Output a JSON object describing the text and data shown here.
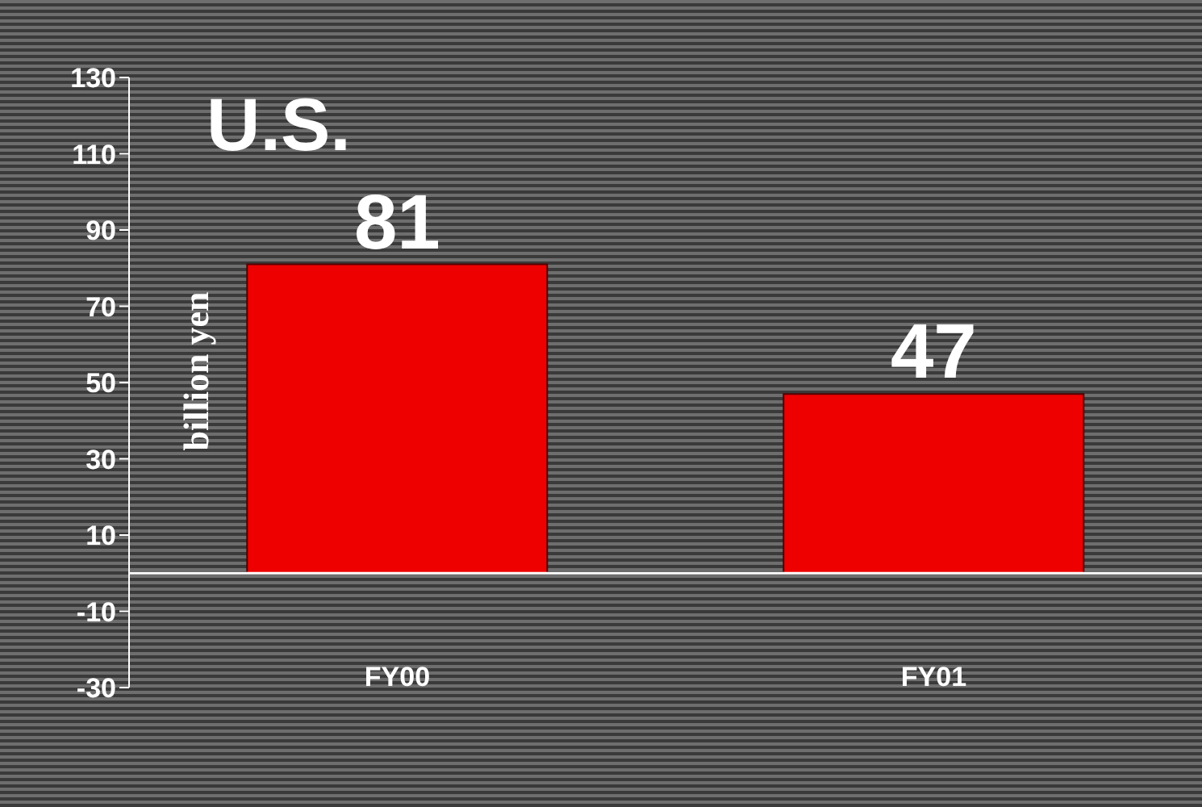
{
  "chart_data": {
    "type": "bar",
    "title": "U.S.",
    "ylabel": "billion yen",
    "categories": [
      "FY00",
      "FY01"
    ],
    "values": [
      81,
      47
    ],
    "color": "#ee0000",
    "ylim": [
      -30,
      130
    ],
    "yticks": [
      -30,
      -10,
      10,
      30,
      50,
      70,
      90,
      110,
      130
    ],
    "data_labels": true
  }
}
